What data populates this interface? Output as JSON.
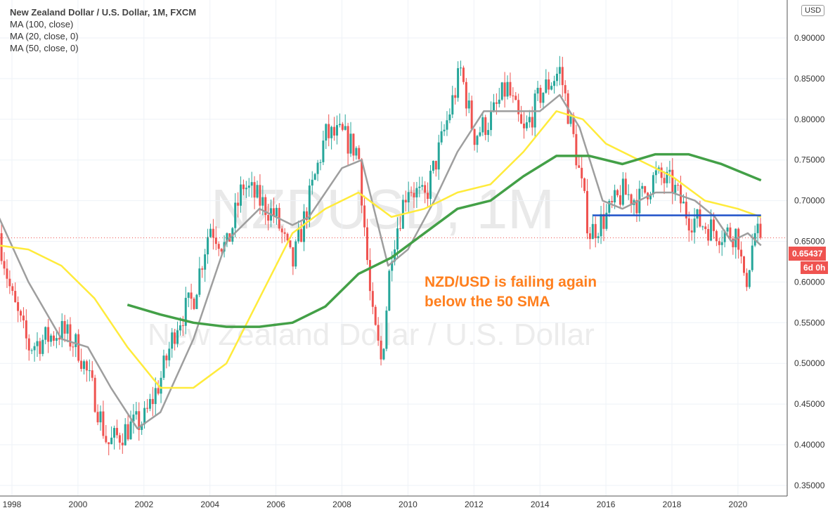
{
  "header": {
    "title": "New Zealand Dollar / U.S. Dollar, 1M, FXCM",
    "indicators": [
      "MA (100, close)",
      "MA (20, close, 0)",
      "MA (50, close, 0)"
    ],
    "currency": "USD"
  },
  "watermark": {
    "symbol": "NZDUSD, 1M",
    "name": "New Zealand Dollar / U.S. Dollar"
  },
  "annotation": {
    "line1": "NZD/USD is failing again",
    "line2": "below the 50 SMA"
  },
  "price_label": "0.65437",
  "countdown": "6d 0h",
  "colors": {
    "up": "#26a69a",
    "down": "#ef5350",
    "ma_gray": "#9e9e9e",
    "ma_yellow": "#ffeb3b",
    "ma_green": "#43a047",
    "support": "#1e50c8",
    "annotation": "#ff7f1e"
  },
  "chart_data": {
    "type": "candlestick",
    "xlabel": "",
    "ylabel": "",
    "x_ticks": [
      "1998",
      "2000",
      "2002",
      "2004",
      "2006",
      "2008",
      "2010",
      "2012",
      "2014",
      "2016",
      "2018",
      "2020"
    ],
    "y_ticks": [
      "0.90000",
      "0.85000",
      "0.80000",
      "0.75000",
      "0.70000",
      "0.65000",
      "0.60000",
      "0.55000",
      "0.50000",
      "0.45000",
      "0.40000",
      "0.35000"
    ],
    "ylim": [
      0.34,
      0.92
    ],
    "grid": true,
    "price_path": [
      [
        1997.6,
        0.66
      ],
      [
        1998.0,
        0.58
      ],
      [
        1998.5,
        0.52
      ],
      [
        1999.0,
        0.53
      ],
      [
        1999.5,
        0.54
      ],
      [
        2000.0,
        0.52
      ],
      [
        2000.5,
        0.46
      ],
      [
        2000.9,
        0.4
      ],
      [
        2001.5,
        0.42
      ],
      [
        2002.0,
        0.43
      ],
      [
        2002.5,
        0.48
      ],
      [
        2003.0,
        0.55
      ],
      [
        2003.5,
        0.58
      ],
      [
        2004.0,
        0.67
      ],
      [
        2004.5,
        0.64
      ],
      [
        2005.0,
        0.72
      ],
      [
        2005.5,
        0.7
      ],
      [
        2006.0,
        0.68
      ],
      [
        2006.5,
        0.62
      ],
      [
        2007.0,
        0.7
      ],
      [
        2007.5,
        0.78
      ],
      [
        2008.0,
        0.78
      ],
      [
        2008.5,
        0.76
      ],
      [
        2008.9,
        0.56
      ],
      [
        2009.2,
        0.5
      ],
      [
        2009.5,
        0.64
      ],
      [
        2010.0,
        0.72
      ],
      [
        2010.5,
        0.7
      ],
      [
        2011.0,
        0.77
      ],
      [
        2011.6,
        0.86
      ],
      [
        2012.0,
        0.78
      ],
      [
        2012.5,
        0.8
      ],
      [
        2013.0,
        0.84
      ],
      [
        2013.5,
        0.78
      ],
      [
        2014.0,
        0.83
      ],
      [
        2014.6,
        0.86
      ],
      [
        2015.0,
        0.78
      ],
      [
        2015.5,
        0.66
      ],
      [
        2016.0,
        0.68
      ],
      [
        2016.5,
        0.71
      ],
      [
        2017.0,
        0.7
      ],
      [
        2017.5,
        0.73
      ],
      [
        2018.0,
        0.72
      ],
      [
        2018.5,
        0.68
      ],
      [
        2019.0,
        0.67
      ],
      [
        2019.5,
        0.66
      ],
      [
        2020.0,
        0.66
      ],
      [
        2020.2,
        0.59
      ],
      [
        2020.5,
        0.66
      ],
      [
        2020.7,
        0.654
      ]
    ],
    "series": [
      {
        "name": "MA (20, close, 0)",
        "color": "#9e9e9e",
        "points": [
          [
            1997.6,
            0.68
          ],
          [
            1998.5,
            0.6
          ],
          [
            1999.5,
            0.53
          ],
          [
            2000.3,
            0.52
          ],
          [
            2001,
            0.47
          ],
          [
            2001.8,
            0.42
          ],
          [
            2002.5,
            0.44
          ],
          [
            2003.5,
            0.53
          ],
          [
            2004.5,
            0.65
          ],
          [
            2005.5,
            0.69
          ],
          [
            2006.5,
            0.67
          ],
          [
            2007,
            0.68
          ],
          [
            2008,
            0.74
          ],
          [
            2008.6,
            0.75
          ],
          [
            2009.4,
            0.62
          ],
          [
            2010,
            0.64
          ],
          [
            2010.8,
            0.7
          ],
          [
            2011.5,
            0.76
          ],
          [
            2012.3,
            0.81
          ],
          [
            2013,
            0.81
          ],
          [
            2014,
            0.81
          ],
          [
            2014.6,
            0.83
          ],
          [
            2015.2,
            0.79
          ],
          [
            2015.9,
            0.7
          ],
          [
            2016.5,
            0.69
          ],
          [
            2017.5,
            0.71
          ],
          [
            2018,
            0.71
          ],
          [
            2018.7,
            0.7
          ],
          [
            2019.3,
            0.68
          ],
          [
            2019.8,
            0.65
          ],
          [
            2020.3,
            0.66
          ],
          [
            2020.7,
            0.645
          ]
        ]
      },
      {
        "name": "MA (50, close, 0)",
        "color": "#ffeb3b",
        "points": [
          [
            1997.6,
            0.645
          ],
          [
            1998.5,
            0.64
          ],
          [
            1999.5,
            0.62
          ],
          [
            2000.5,
            0.58
          ],
          [
            2001.5,
            0.52
          ],
          [
            2002.5,
            0.47
          ],
          [
            2003.5,
            0.47
          ],
          [
            2004.5,
            0.5
          ],
          [
            2005.5,
            0.58
          ],
          [
            2006.5,
            0.66
          ],
          [
            2007.5,
            0.69
          ],
          [
            2008.5,
            0.71
          ],
          [
            2009.5,
            0.68
          ],
          [
            2010.5,
            0.69
          ],
          [
            2011.5,
            0.71
          ],
          [
            2012.5,
            0.72
          ],
          [
            2013.5,
            0.76
          ],
          [
            2014.5,
            0.81
          ],
          [
            2015.3,
            0.8
          ],
          [
            2016,
            0.77
          ],
          [
            2017,
            0.75
          ],
          [
            2018,
            0.73
          ],
          [
            2019,
            0.7
          ],
          [
            2020,
            0.69
          ],
          [
            2020.7,
            0.68
          ]
        ]
      },
      {
        "name": "MA (100, close)",
        "color": "#43a047",
        "points": [
          [
            2001.5,
            0.572
          ],
          [
            2002.5,
            0.56
          ],
          [
            2003.5,
            0.55
          ],
          [
            2004.5,
            0.545
          ],
          [
            2005.5,
            0.545
          ],
          [
            2006.5,
            0.55
          ],
          [
            2007.5,
            0.57
          ],
          [
            2008.5,
            0.61
          ],
          [
            2009.5,
            0.63
          ],
          [
            2010.5,
            0.66
          ],
          [
            2011.5,
            0.69
          ],
          [
            2012.5,
            0.7
          ],
          [
            2013.5,
            0.73
          ],
          [
            2014.5,
            0.755
          ],
          [
            2015.5,
            0.755
          ],
          [
            2016.5,
            0.745
          ],
          [
            2017.5,
            0.757
          ],
          [
            2018.5,
            0.757
          ],
          [
            2019.5,
            0.745
          ],
          [
            2020.7,
            0.725
          ]
        ]
      }
    ],
    "support_line": {
      "from": 2015.6,
      "to": 2020.7,
      "value": 0.682
    },
    "last_price": 0.65437
  }
}
